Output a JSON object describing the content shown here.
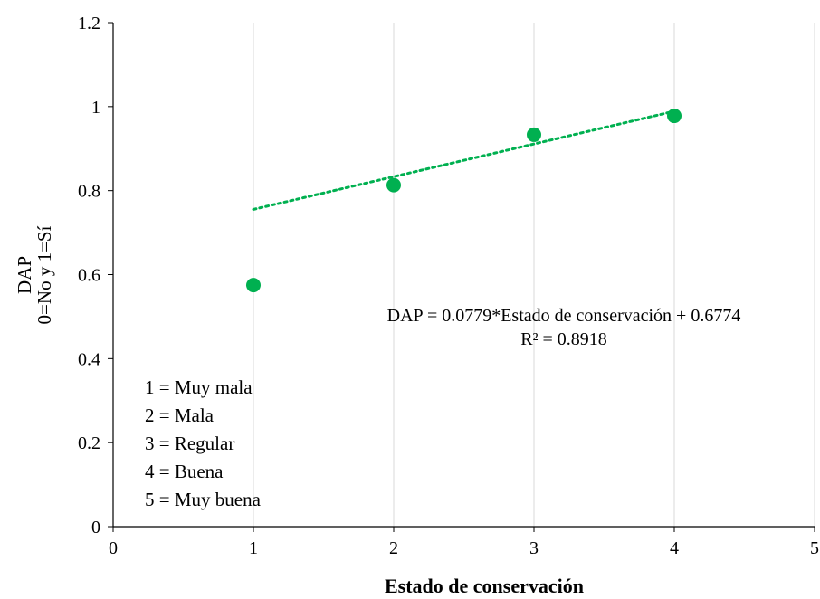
{
  "chart_data": {
    "type": "scatter",
    "title": "",
    "xlabel": "Estado de conservación",
    "ylabel_line1": "DAP",
    "ylabel_line2": "0=No y 1=Sí",
    "xlim": [
      0,
      5
    ],
    "ylim": [
      0,
      1.2
    ],
    "x_ticks": [
      0,
      1,
      2,
      3,
      4,
      5
    ],
    "x_tick_labels": [
      "0",
      "1",
      "2",
      "3",
      "4",
      "5"
    ],
    "y_ticks": [
      0,
      0.2,
      0.4,
      0.6,
      0.8,
      1.0,
      1.2
    ],
    "y_tick_labels": [
      "0",
      "0.2",
      "0.4",
      "0.6",
      "0.8",
      "1",
      "1.2"
    ],
    "grid": "vertical",
    "series": [
      {
        "x": [
          1,
          2,
          3,
          4
        ],
        "y": [
          0.575,
          0.813,
          0.933,
          0.978
        ],
        "color": "#00b050"
      }
    ],
    "trendline": {
      "slope": 0.0779,
      "intercept": 0.6774,
      "x_range": [
        1,
        4
      ],
      "style": "dotted",
      "color": "#00b050"
    },
    "annotations": {
      "equation": "DAP = 0.0779*Estado de conservación + 0.6774",
      "r2": "R² = 0.8918"
    },
    "legend_text": [
      "1 = Muy mala",
      "2 = Mala",
      "3 = Regular",
      "4 = Buena",
      "5 = Muy buena"
    ]
  }
}
